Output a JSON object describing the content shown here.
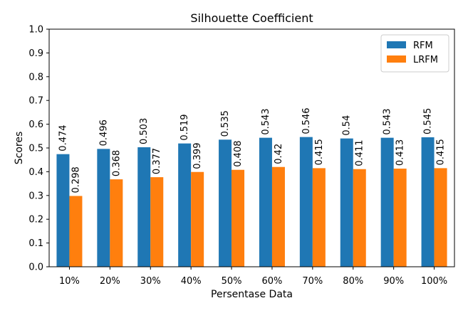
{
  "chart_data": {
    "type": "bar",
    "title": "Silhouette Coefficient",
    "xlabel": "Persentase Data",
    "ylabel": "Scores",
    "ylim": [
      0,
      1.0
    ],
    "yticks": [
      "0.0",
      "0.1",
      "0.2",
      "0.3",
      "0.4",
      "0.5",
      "0.6",
      "0.7",
      "0.8",
      "0.9",
      "1.0"
    ],
    "categories": [
      "10%",
      "20%",
      "30%",
      "40%",
      "50%",
      "60%",
      "70%",
      "80%",
      "90%",
      "100%"
    ],
    "series": [
      {
        "name": "RFM",
        "color": "#1f77b4",
        "values": [
          0.474,
          0.496,
          0.503,
          0.519,
          0.535,
          0.543,
          0.546,
          0.54,
          0.543,
          0.545
        ],
        "labels": [
          "0.474",
          "0.496",
          "0.503",
          "0.519",
          "0.535",
          "0.543",
          "0.546",
          "0.54",
          "0.543",
          "0.545"
        ]
      },
      {
        "name": "LRFM",
        "color": "#ff7f0e",
        "values": [
          0.298,
          0.368,
          0.377,
          0.399,
          0.408,
          0.42,
          0.415,
          0.411,
          0.413,
          0.415
        ],
        "labels": [
          "0.298",
          "0.368",
          "0.377",
          "0.399",
          "0.408",
          "0.42",
          "0.415",
          "0.411",
          "0.413",
          "0.415"
        ]
      }
    ],
    "grid": false,
    "legend_position": "top-right"
  }
}
